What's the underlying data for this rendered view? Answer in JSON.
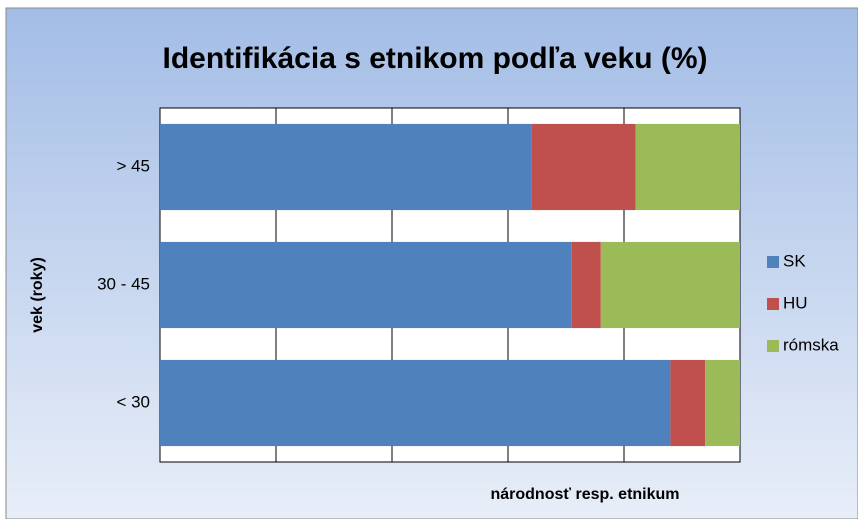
{
  "chart_data": {
    "type": "stacked_barh",
    "title": "Identifikácia s etnikom podľa veku (%)",
    "x_label": "národnosť resp. etnikum",
    "y_label": "vek (roky)",
    "categories": [
      "< 30",
      "30 - 45",
      "> 45"
    ],
    "series": [
      {
        "name": "SK",
        "color": "#4f81bd",
        "values": [
          88,
          71,
          64
        ]
      },
      {
        "name": "HU",
        "color": "#c0504d",
        "values": [
          6,
          5,
          18
        ]
      },
      {
        "name": "rómska",
        "color": "#9bbb59",
        "values": [
          6,
          24,
          18
        ]
      }
    ],
    "xlim": [
      0,
      100
    ],
    "xticks": [
      0,
      20,
      40,
      60,
      80,
      100
    ],
    "grid": true,
    "legend": "right"
  }
}
